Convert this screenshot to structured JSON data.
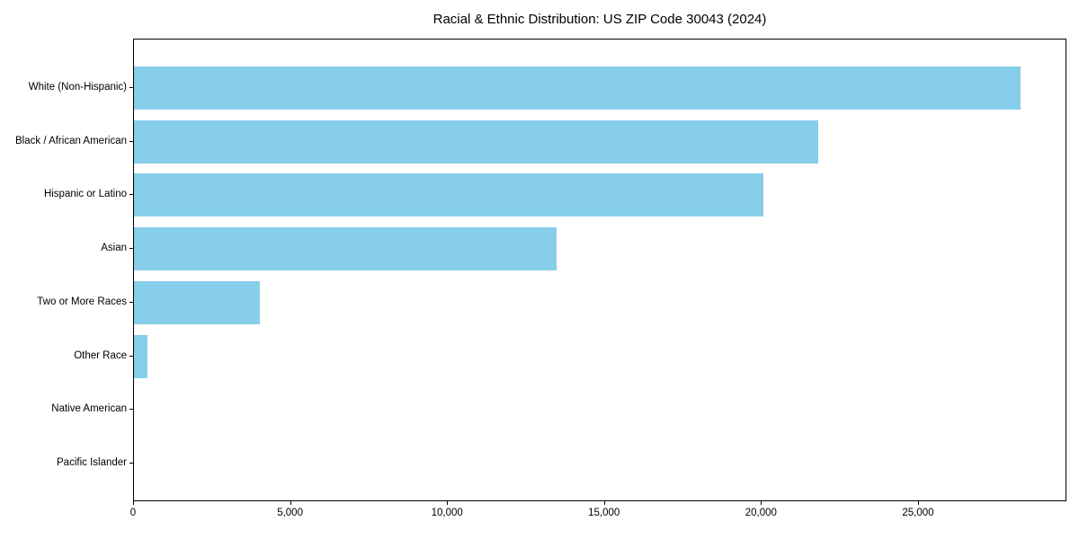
{
  "title": "Racial & Ethnic Distribution: US ZIP Code 30043 (2024)",
  "chart_data": {
    "type": "bar",
    "orientation": "horizontal",
    "title": "Racial & Ethnic Distribution: US ZIP Code 30043 (2024)",
    "categories": [
      "White (Non-Hispanic)",
      "Black / African American",
      "Hispanic or Latino",
      "Asian",
      "Two or More Races",
      "Other Race",
      "Native American",
      "Pacific Islander"
    ],
    "values": [
      28250,
      21800,
      20050,
      13450,
      4000,
      430,
      0,
      0
    ],
    "xlabel": "",
    "ylabel": "",
    "xlim": [
      0,
      29670
    ],
    "x_ticks": [
      0,
      5000,
      10000,
      15000,
      20000,
      25000
    ],
    "x_tick_labels": [
      "0",
      "5,000",
      "10,000",
      "15,000",
      "20,000",
      "25,000"
    ],
    "bar_color": "#87CEEB",
    "grid": false,
    "legend_position": "none"
  }
}
